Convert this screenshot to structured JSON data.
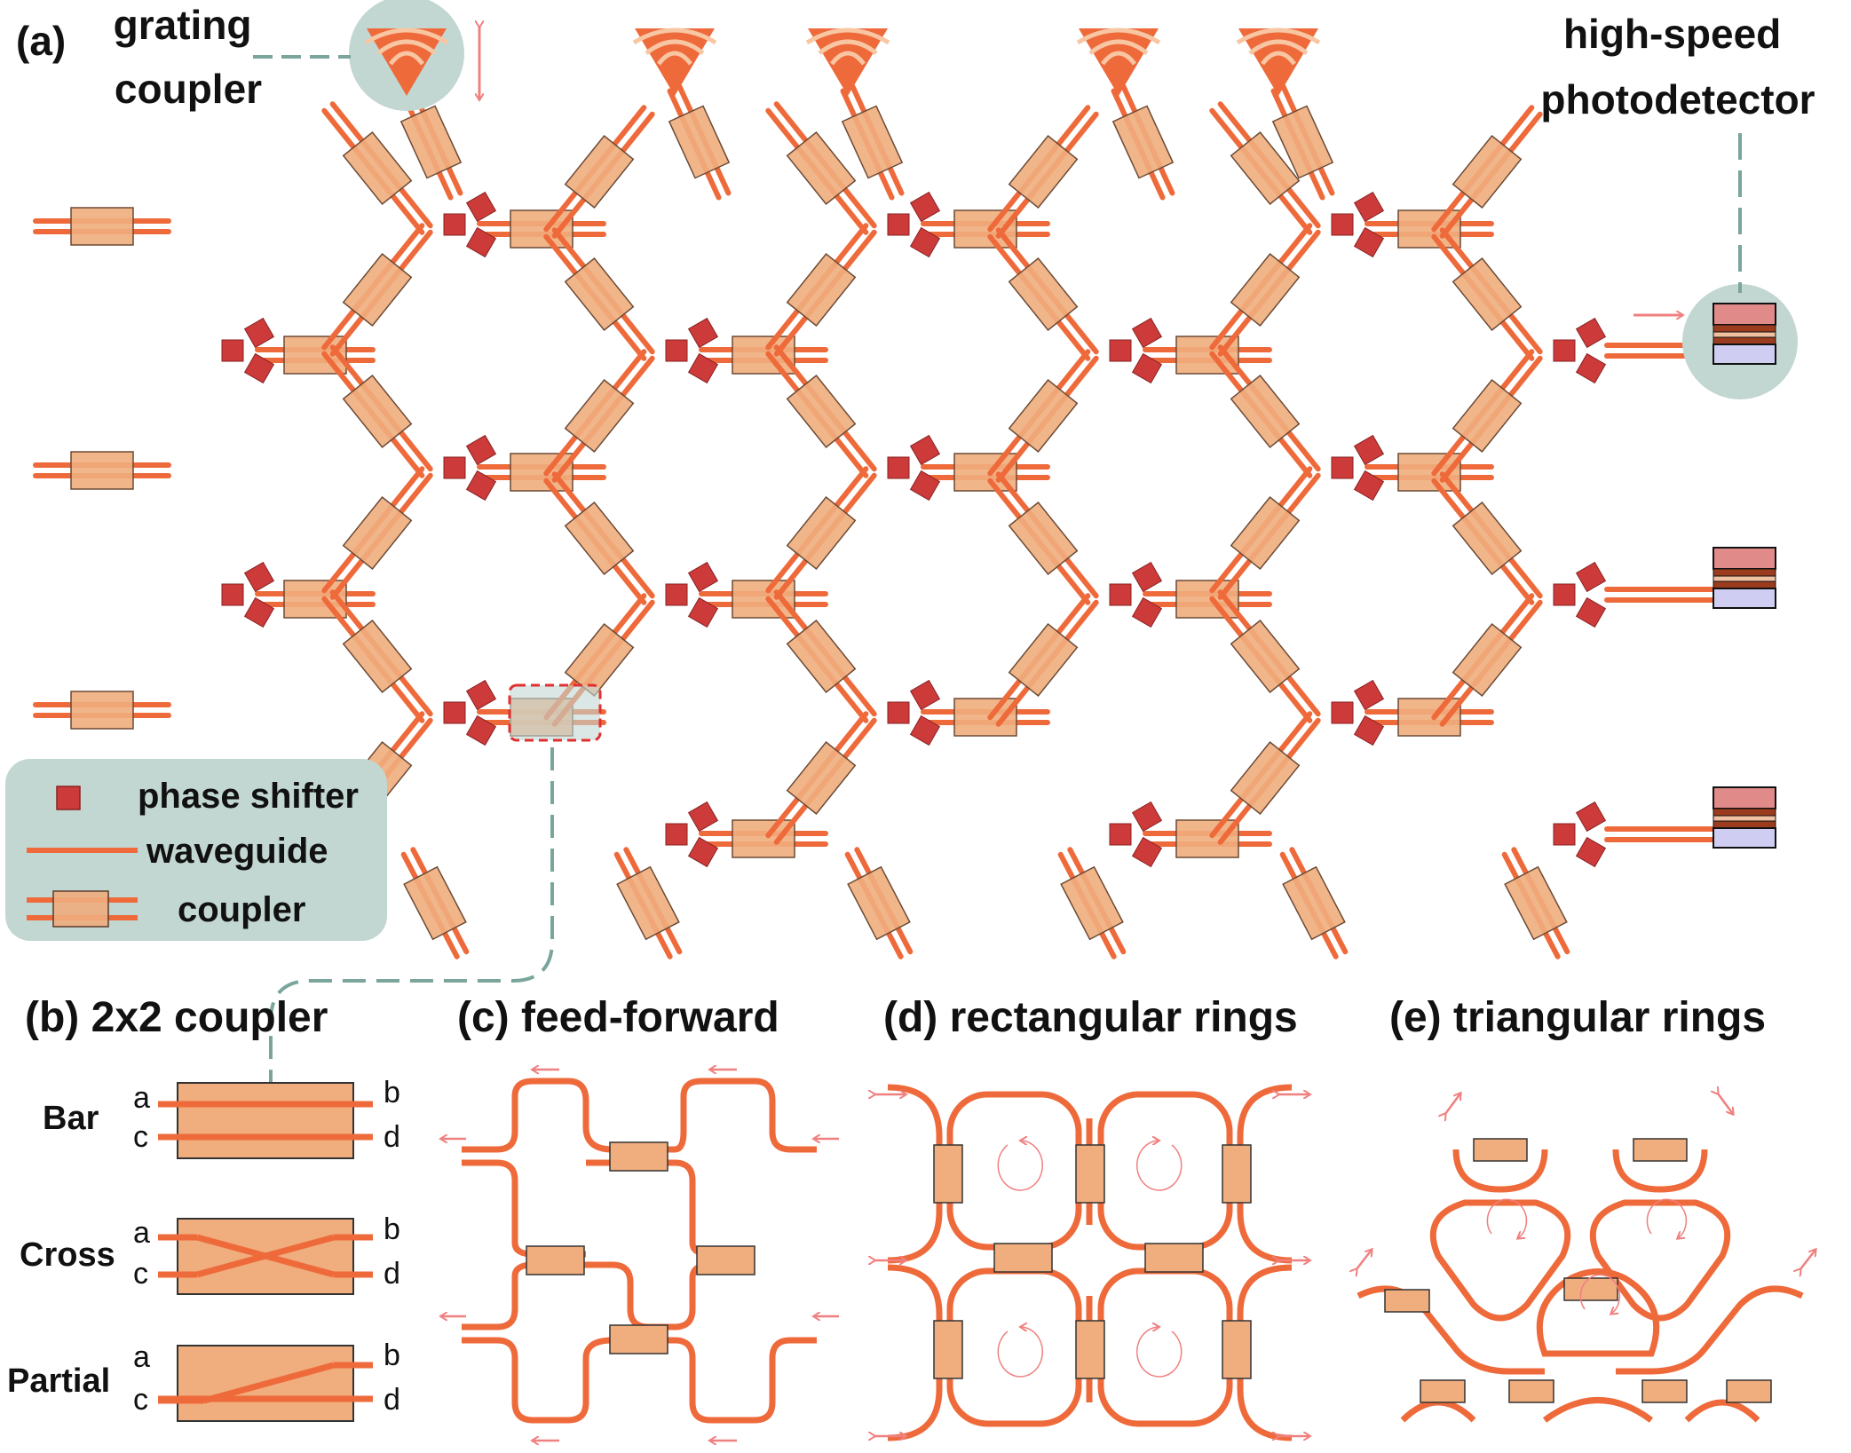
{
  "panel_a": {
    "label": "(a)",
    "grating_coupler": "grating\ncoupler",
    "photodetector": "high-speed\nphotodetector",
    "legend": {
      "phase_shifter": "phase shifter",
      "waveguide": "waveguide",
      "coupler": "coupler"
    }
  },
  "panel_b": {
    "title": "(b) 2x2 coupler",
    "rows": [
      {
        "name": "Bar",
        "in_top": "a",
        "in_bot": "c",
        "out_top": "b",
        "out_bot": "d"
      },
      {
        "name": "Cross",
        "in_top": "a",
        "in_bot": "c",
        "out_top": "b",
        "out_bot": "d"
      },
      {
        "name": "Partial",
        "in_top": "a",
        "in_bot": "c",
        "out_top": "b",
        "out_bot": "d"
      }
    ]
  },
  "panel_c": {
    "title": "(c) feed-forward"
  },
  "panel_d": {
    "title": "(d) rectangular rings"
  },
  "panel_e": {
    "title": "(e) triangular rings"
  },
  "colors": {
    "waveguide": "#ee6a3b",
    "coupler_fill": "#f0ad7d",
    "phase_shifter": "#cc3a3a",
    "highlight": "#c3d7d2",
    "arrow": "#f08080",
    "pd_top": "#e08a8a",
    "pd_mid": "#9b3c1f",
    "pd_bottom": "#cfcdf2"
  }
}
